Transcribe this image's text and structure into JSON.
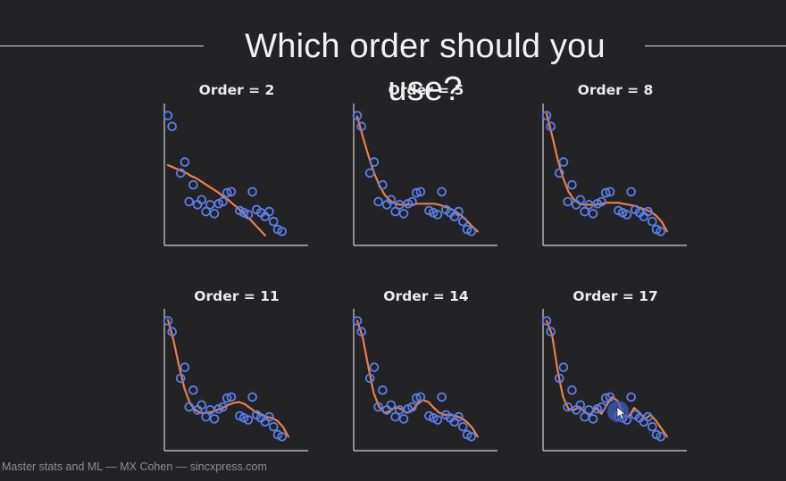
{
  "slide": {
    "title": "Which order should you use?",
    "footer": "Master stats and ML — MX Cohen — sincxpress.com"
  },
  "chart_data": [
    {
      "type": "scatter",
      "title": "Order = 2",
      "order": 2,
      "x": [
        0,
        1,
        2,
        3,
        4,
        5,
        6,
        7,
        8,
        9,
        10,
        11,
        12,
        13,
        14,
        15,
        16,
        17,
        18,
        19,
        20,
        21,
        22,
        23,
        24,
        25,
        26,
        27,
        28,
        29
      ],
      "y": [
        12.3,
        11.2,
        7.6,
        6.5,
        5.3,
        3.6,
        3.3,
        3.8,
        2.6,
        3.3,
        2.4,
        3.4,
        3.6,
        4.5,
        4.6,
        2.7,
        2.5,
        2.3,
        4.6,
        2.8,
        2.5,
        2.1,
        2.6,
        1.6,
        0.8,
        0.6,
        0,
        0,
        0,
        0
      ],
      "fit": [
        7.3,
        7.1,
        6.9,
        6.7,
        6.5,
        6.2,
        6.0,
        5.7,
        5.4,
        5.1,
        4.8,
        4.5,
        4.1,
        3.8,
        3.4,
        3.0,
        2.6,
        2.1,
        1.7,
        1.2,
        0.7,
        0.2
      ],
      "xlim": [
        0,
        29
      ],
      "ylim": [
        -1,
        13
      ]
    },
    {
      "type": "scatter",
      "title": "Order = 5",
      "order": 5,
      "x": [
        0,
        1,
        2,
        3,
        4,
        5,
        6,
        7,
        8,
        9,
        10,
        11,
        12,
        13,
        14,
        15,
        16,
        17,
        18,
        19,
        20,
        21,
        22,
        23,
        24,
        25,
        26,
        27,
        28,
        29
      ],
      "y": [
        12.3,
        11.2,
        7.6,
        6.5,
        5.3,
        3.6,
        3.3,
        3.8,
        2.6,
        3.3,
        2.4,
        3.4,
        3.6,
        4.5,
        4.6,
        2.7,
        2.5,
        2.3,
        4.6,
        2.8,
        2.5,
        2.1,
        2.6,
        1.6,
        0.8,
        0.6,
        0,
        0,
        0,
        0
      ],
      "fit": [
        12.2,
        10.2,
        8.3,
        6.6,
        5.3,
        4.3,
        3.7,
        3.4,
        3.3,
        3.3,
        3.3,
        3.4,
        3.4,
        3.4,
        3.4,
        3.3,
        3.1,
        2.9,
        2.6,
        2.2,
        1.7,
        1.1,
        0.6
      ],
      "xlim": [
        0,
        29
      ],
      "ylim": [
        -1,
        13
      ]
    },
    {
      "type": "scatter",
      "title": "Order = 8",
      "order": 8,
      "x": [
        0,
        1,
        2,
        3,
        4,
        5,
        6,
        7,
        8,
        9,
        10,
        11,
        12,
        13,
        14,
        15,
        16,
        17,
        18,
        19,
        20,
        21,
        22,
        23,
        24,
        25,
        26,
        27,
        28,
        29
      ],
      "y": [
        12.3,
        11.2,
        7.6,
        6.5,
        5.3,
        3.6,
        3.3,
        3.8,
        2.6,
        3.3,
        2.4,
        3.4,
        3.6,
        4.5,
        4.6,
        2.7,
        2.5,
        2.3,
        4.6,
        2.8,
        2.5,
        2.1,
        2.6,
        1.6,
        0.8,
        0.6,
        0,
        0,
        0,
        0
      ],
      "fit": [
        12.5,
        10.3,
        7.9,
        6.0,
        4.6,
        3.8,
        3.4,
        3.3,
        3.3,
        3.3,
        3.4,
        3.5,
        3.5,
        3.5,
        3.4,
        3.3,
        3.2,
        3.0,
        2.8,
        2.6,
        2.2,
        1.6,
        0.6
      ],
      "xlim": [
        0,
        29
      ],
      "ylim": [
        -1,
        13
      ]
    },
    {
      "type": "scatter",
      "title": "Order = 11",
      "order": 11,
      "x": [
        0,
        1,
        2,
        3,
        4,
        5,
        6,
        7,
        8,
        9,
        10,
        11,
        12,
        13,
        14,
        15,
        16,
        17,
        18,
        19,
        20,
        21,
        22,
        23,
        24,
        25,
        26,
        27,
        28,
        29
      ],
      "y": [
        12.3,
        11.2,
        7.6,
        6.5,
        5.3,
        3.6,
        3.3,
        3.8,
        2.6,
        3.3,
        2.4,
        3.4,
        3.6,
        4.5,
        4.6,
        2.7,
        2.5,
        2.3,
        4.6,
        2.8,
        2.5,
        2.1,
        2.6,
        1.6,
        0.8,
        0.6,
        0,
        0,
        0,
        0
      ],
      "fit": [
        12.4,
        10.4,
        7.8,
        5.5,
        4.0,
        3.3,
        3.0,
        3.0,
        3.1,
        3.3,
        3.5,
        3.8,
        4.0,
        4.1,
        3.9,
        3.5,
        3.1,
        2.8,
        2.6,
        2.5,
        2.2,
        1.6,
        0.6
      ],
      "xlim": [
        0,
        29
      ],
      "ylim": [
        -1,
        13
      ]
    },
    {
      "type": "scatter",
      "title": "Order = 14",
      "order": 14,
      "x": [
        0,
        1,
        2,
        3,
        4,
        5,
        6,
        7,
        8,
        9,
        10,
        11,
        12,
        13,
        14,
        15,
        16,
        17,
        18,
        19,
        20,
        21,
        22,
        23,
        24,
        25,
        26,
        27,
        28,
        29
      ],
      "y": [
        12.3,
        11.2,
        7.6,
        6.5,
        5.3,
        3.6,
        3.3,
        3.8,
        2.6,
        3.3,
        2.4,
        3.4,
        3.6,
        4.5,
        4.6,
        2.7,
        2.5,
        2.3,
        4.6,
        2.8,
        2.5,
        2.1,
        2.6,
        1.6,
        0.8,
        0.6,
        0,
        0,
        0,
        0
      ],
      "fit": [
        12.3,
        10.6,
        7.7,
        5.0,
        3.6,
        3.0,
        3.2,
        3.6,
        3.4,
        3.0,
        3.2,
        3.9,
        4.3,
        4.1,
        3.5,
        3.0,
        2.8,
        2.8,
        2.7,
        2.5,
        2.1,
        1.5,
        0.6
      ],
      "xlim": [
        0,
        29
      ],
      "ylim": [
        -1,
        13
      ]
    },
    {
      "type": "scatter",
      "title": "Order = 17",
      "order": 17,
      "x": [
        0,
        1,
        2,
        3,
        4,
        5,
        6,
        7,
        8,
        9,
        10,
        11,
        12,
        13,
        14,
        15,
        16,
        17,
        18,
        19,
        20,
        21,
        22,
        23,
        24,
        25,
        26,
        27,
        28,
        29
      ],
      "y": [
        12.3,
        11.2,
        7.6,
        6.5,
        5.3,
        3.6,
        3.3,
        3.8,
        2.6,
        3.3,
        2.4,
        3.4,
        3.6,
        4.5,
        4.6,
        2.7,
        2.5,
        2.3,
        4.6,
        2.8,
        2.5,
        2.1,
        2.6,
        1.6,
        0.8,
        0.6,
        0,
        0,
        0,
        0
      ],
      "fit": [
        12.3,
        10.9,
        7.3,
        4.6,
        3.4,
        3.3,
        3.6,
        3.1,
        2.8,
        3.5,
        2.9,
        3.8,
        4.6,
        4.2,
        2.9,
        2.6,
        3.5,
        3.0,
        2.4,
        2.8,
        2.2,
        1.4,
        0.6
      ],
      "xlim": [
        0,
        29
      ],
      "ylim": [
        -1,
        13
      ]
    }
  ],
  "colors": {
    "background": "#232325",
    "points": "#5b7de8",
    "fit": "#e8804c",
    "axes": "#d0d0d0",
    "title_text": "#f2f2f2"
  }
}
